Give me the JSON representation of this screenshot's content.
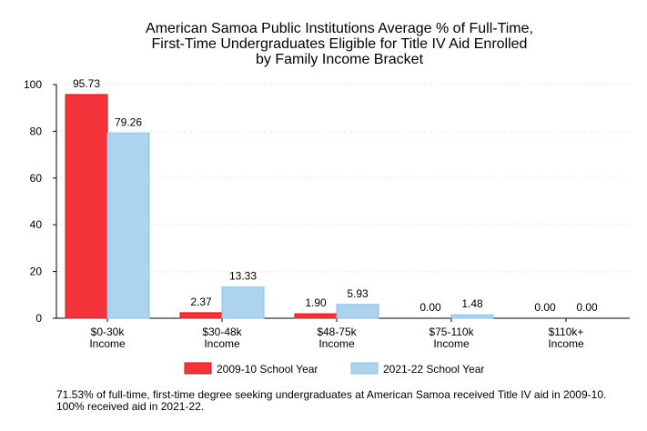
{
  "chart_data": {
    "type": "bar",
    "title": [
      "American Samoa Public Institutions Average % of Full-Time,",
      "First-Time Undergraduates Eligible for Title IV Aid Enrolled",
      "by Family Income Bracket"
    ],
    "categories": [
      [
        "$0-30k",
        "Income"
      ],
      [
        "$30-48k",
        "Income"
      ],
      [
        "$48-75k",
        "Income"
      ],
      [
        "$75-110k",
        "Income"
      ],
      [
        "$110k+",
        "Income"
      ]
    ],
    "series": [
      {
        "name": "2009-10 School Year",
        "values": [
          95.73,
          2.37,
          1.9,
          0.0,
          0.0
        ],
        "labels": [
          "95.73",
          "2.37",
          "1.90",
          "0.00",
          "0.00"
        ],
        "color": "#f5333a",
        "stroke": "#c41a20"
      },
      {
        "name": "2021-22 School Year",
        "values": [
          79.26,
          13.33,
          5.93,
          1.48,
          0.0
        ],
        "labels": [
          "79.26",
          "13.33",
          "5.93",
          "1.48",
          "0.00"
        ],
        "color": "#acd4ef",
        "stroke": "#8ec0e3"
      }
    ],
    "yticks": [
      0,
      20,
      40,
      60,
      80,
      100
    ],
    "ylim": [
      0,
      100
    ],
    "grid": true,
    "legend_position": "bottom"
  },
  "footnote": "71.53% of full-time, first-time degree seeking undergraduates at American Samoa received Title IV aid in 2009-10. 100% received aid in 2021-22."
}
